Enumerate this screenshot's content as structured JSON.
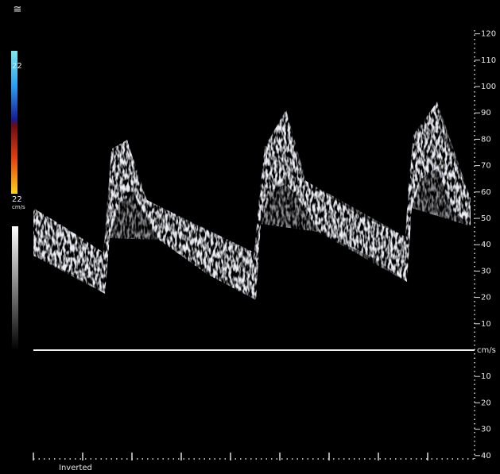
{
  "header": {
    "icon": "≅"
  },
  "color_scale": {
    "top_label": "22",
    "bottom_label": "22",
    "unit": "cm/s"
  },
  "velocity_scale": {
    "upper_ticks": [
      "120",
      "110",
      "100",
      "90",
      "80",
      "70",
      "60",
      "50",
      "40",
      "30",
      "20",
      "10"
    ],
    "baseline_unit": "cm/s",
    "lower_ticks": [
      "10",
      "20",
      "30",
      "40"
    ]
  },
  "footer": {
    "mode": "Inverted"
  }
}
